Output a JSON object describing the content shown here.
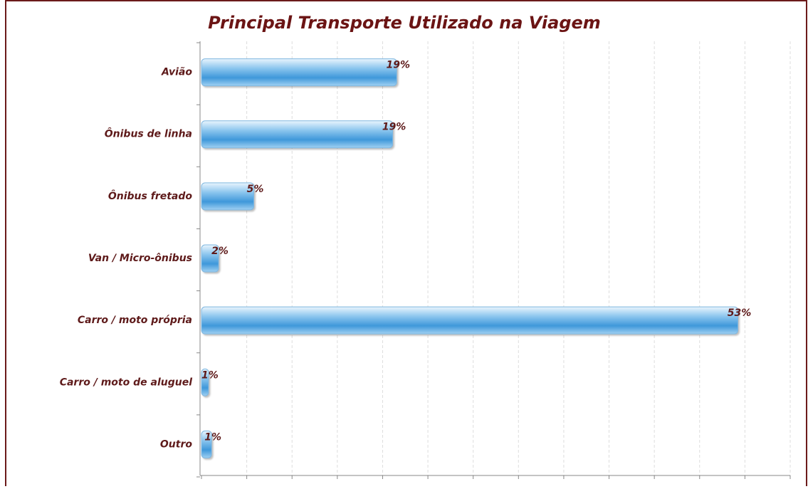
{
  "chart_data": {
    "type": "hbar",
    "title": "Principal Transporte Utilizado na Viagem",
    "categories": [
      "Avião",
      "Ônibus de linha",
      "Ônibus fretado",
      "Van / Micro-ônibus",
      "Carro / moto própria",
      "Carro / moto de aluguel",
      "Outro"
    ],
    "values": [
      19.4,
      19.0,
      5.2,
      1.7,
      53.3,
      0.7,
      1.0
    ],
    "value_labels": [
      "19%",
      "19%",
      "5%",
      "2%",
      "53%",
      "1%",
      "1%"
    ],
    "color": "#4aa0de",
    "xlim": [
      0,
      58.5
    ],
    "xticks": [
      0,
      4.5,
      9,
      13.5,
      18,
      22.5,
      27,
      31.5,
      36,
      40.5,
      45,
      49.5,
      54,
      58.5
    ],
    "grid": true
  }
}
